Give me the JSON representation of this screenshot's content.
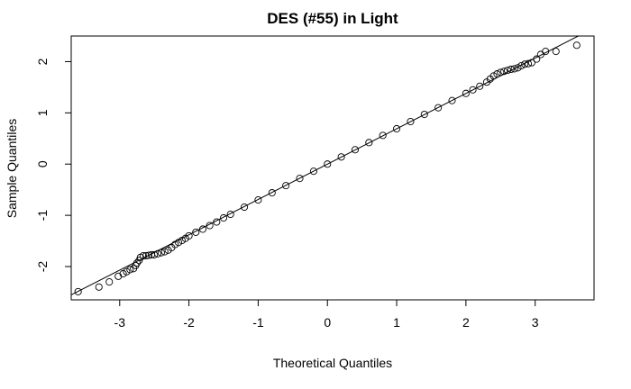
{
  "chart_data": {
    "type": "scatter",
    "subtype": "qq-plot",
    "title": "DES (#55) in Light",
    "xlabel": "Theoretical Quantiles",
    "ylabel": "Sample Quantiles",
    "xlim": [
      -3.7,
      3.85
    ],
    "ylim": [
      -2.65,
      2.5
    ],
    "x_ticks": [
      -3,
      -2,
      -1,
      0,
      1,
      2,
      3
    ],
    "y_ticks": [
      -2,
      -1,
      0,
      1,
      2
    ],
    "grid": false,
    "legend": "none",
    "reference_line": {
      "slope": 0.69,
      "intercept": 0.0
    },
    "points": [
      [
        -3.6,
        -2.49
      ],
      [
        -3.3,
        -2.4
      ],
      [
        -3.15,
        -2.3
      ],
      [
        -3.02,
        -2.19
      ],
      [
        -2.95,
        -2.14
      ],
      [
        -2.9,
        -2.1
      ],
      [
        -2.85,
        -2.06
      ],
      [
        -2.8,
        -2.04
      ],
      [
        -2.77,
        -1.98
      ],
      [
        -2.75,
        -1.93
      ],
      [
        -2.72,
        -1.88
      ],
      [
        -2.7,
        -1.82
      ],
      [
        -2.66,
        -1.79
      ],
      [
        -2.62,
        -1.79
      ],
      [
        -2.58,
        -1.78
      ],
      [
        -2.54,
        -1.77
      ],
      [
        -2.5,
        -1.77
      ],
      [
        -2.45,
        -1.75
      ],
      [
        -2.4,
        -1.73
      ],
      [
        -2.35,
        -1.71
      ],
      [
        -2.3,
        -1.68
      ],
      [
        -2.25,
        -1.63
      ],
      [
        -2.2,
        -1.57
      ],
      [
        -2.15,
        -1.53
      ],
      [
        -2.1,
        -1.49
      ],
      [
        -2.05,
        -1.45
      ],
      [
        -2.0,
        -1.4
      ],
      [
        -1.9,
        -1.33
      ],
      [
        -1.8,
        -1.27
      ],
      [
        -1.7,
        -1.2
      ],
      [
        -1.6,
        -1.13
      ],
      [
        -1.5,
        -1.05
      ],
      [
        -1.4,
        -0.98
      ],
      [
        -1.2,
        -0.84
      ],
      [
        -1.0,
        -0.7
      ],
      [
        -0.8,
        -0.56
      ],
      [
        -0.6,
        -0.42
      ],
      [
        -0.4,
        -0.28
      ],
      [
        -0.2,
        -0.14
      ],
      [
        0.0,
        0.0
      ],
      [
        0.2,
        0.14
      ],
      [
        0.4,
        0.28
      ],
      [
        0.6,
        0.42
      ],
      [
        0.8,
        0.56
      ],
      [
        1.0,
        0.69
      ],
      [
        1.2,
        0.83
      ],
      [
        1.4,
        0.97
      ],
      [
        1.6,
        1.1
      ],
      [
        1.8,
        1.24
      ],
      [
        2.0,
        1.38
      ],
      [
        2.1,
        1.45
      ],
      [
        2.2,
        1.52
      ],
      [
        2.3,
        1.6
      ],
      [
        2.35,
        1.66
      ],
      [
        2.4,
        1.72
      ],
      [
        2.45,
        1.76
      ],
      [
        2.5,
        1.79
      ],
      [
        2.55,
        1.81
      ],
      [
        2.6,
        1.83
      ],
      [
        2.65,
        1.85
      ],
      [
        2.7,
        1.86
      ],
      [
        2.75,
        1.88
      ],
      [
        2.8,
        1.92
      ],
      [
        2.85,
        1.95
      ],
      [
        2.9,
        1.96
      ],
      [
        2.95,
        1.98
      ],
      [
        3.02,
        2.05
      ],
      [
        3.08,
        2.14
      ],
      [
        3.15,
        2.2
      ],
      [
        3.3,
        2.2
      ],
      [
        3.6,
        2.32
      ]
    ]
  }
}
